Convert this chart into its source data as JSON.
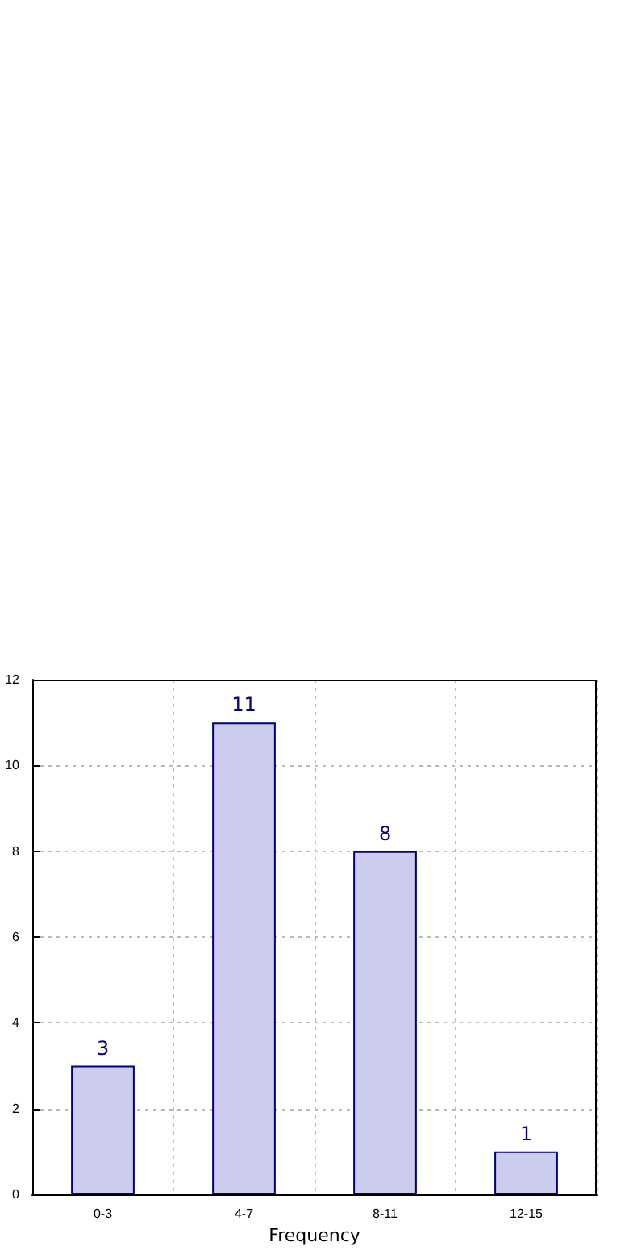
{
  "chart_data": {
    "type": "bar",
    "xlabel": "Frequency",
    "categories": [
      "0-3",
      "4-7",
      "8-11",
      "12-15"
    ],
    "series": [
      {
        "color": "#ccccee",
        "values": [
          3,
          11,
          8,
          1
        ]
      }
    ],
    "ylim": [
      0,
      12
    ],
    "yticks": [
      0,
      2,
      4,
      6,
      8,
      10,
      12
    ],
    "grid": true,
    "data_labels": true
  }
}
